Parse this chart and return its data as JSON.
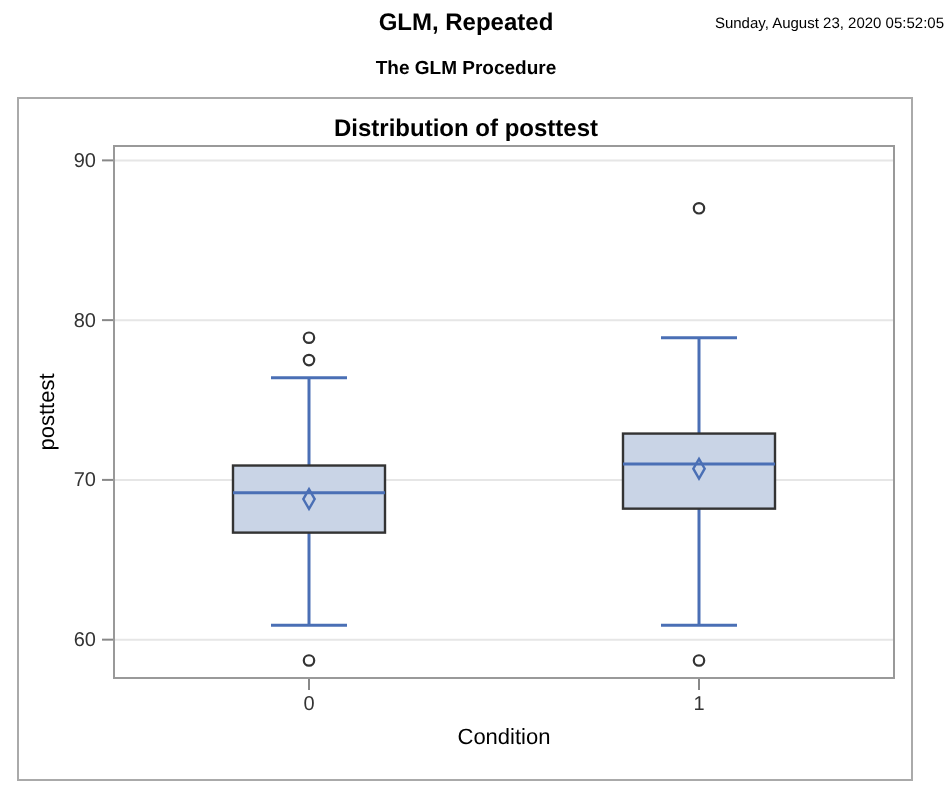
{
  "chart_data": {
    "type": "box",
    "title": "Distribution of posttest",
    "subtitle": "The GLM Procedure",
    "annotations": [
      "GLM, Repeated",
      "Sunday, August 23, 2020 05:52:05"
    ],
    "xlabel": "Condition",
    "ylabel": "posttest",
    "categories": [
      "0",
      "1"
    ],
    "boxes": [
      {
        "low": 60.9,
        "q1": 66.7,
        "median": 69.2,
        "q3": 70.9,
        "high": 76.4,
        "mean": 68.8,
        "outliers": [
          58.7,
          77.5,
          78.9
        ]
      },
      {
        "low": 60.9,
        "q1": 68.2,
        "median": 71.0,
        "q3": 72.9,
        "high": 78.9,
        "mean": 70.7,
        "outliers": [
          58.7,
          87.0
        ]
      }
    ],
    "color": "#c9d4e6",
    "ylim": [
      57.6,
      90.9
    ],
    "yticks": [
      60,
      70,
      80,
      90
    ],
    "grid": "y"
  }
}
